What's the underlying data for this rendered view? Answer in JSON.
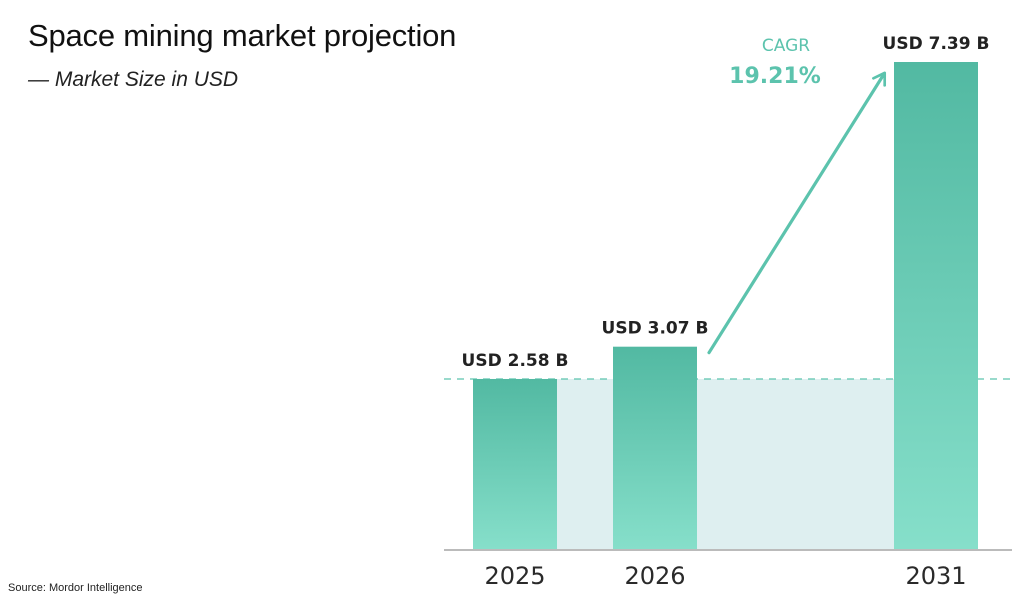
{
  "title": "Space mining market projection",
  "subtitle": "— Market Size in USD",
  "source": "Source: Mordor Intelligence",
  "colors": {
    "bar_top": "#52b9a2",
    "bar_bottom": "#86dfca",
    "band": "#deeff0",
    "accent": "#5cc3ad",
    "axis": "#bbbbbb"
  },
  "chart_data": {
    "type": "bar",
    "title": "Space mining market projection",
    "subtitle": "— Market Size in USD",
    "categories": [
      "2025",
      "2026",
      "2031"
    ],
    "values": [
      2.58,
      3.07,
      7.39
    ],
    "value_labels": [
      "USD 2.58 B",
      "USD 3.07 B",
      "USD 7.39 B"
    ],
    "unit": "USD B",
    "baseline_reference": 2.58,
    "annotation": {
      "label": "CAGR",
      "value": "19.21%",
      "from_category": "2026",
      "to_category": "2031"
    },
    "ylim": [
      0,
      7.39
    ],
    "grid": false,
    "legend": "none",
    "xlabel": "",
    "ylabel": ""
  }
}
